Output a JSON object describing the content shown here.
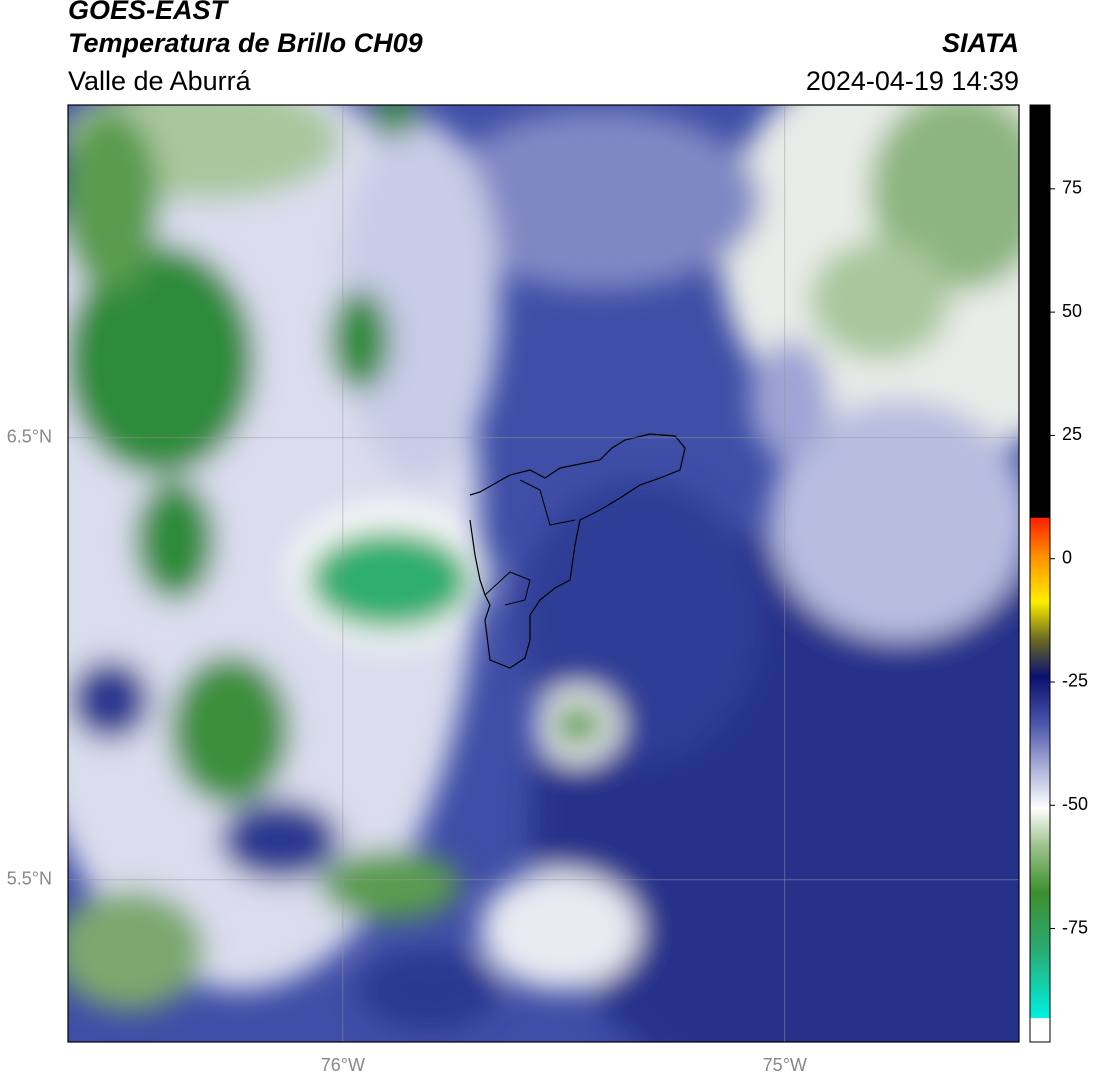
{
  "header": {
    "title": "GOES-EAST",
    "subtitle": "Temperatura de Brillo CH09",
    "region": "Valle de Aburrá",
    "source": "SIATA",
    "datetime": "2024-04-19 14:39"
  },
  "map": {
    "xlim": [
      -76.622,
      -74.47
    ],
    "ylim": [
      5.133,
      7.253
    ],
    "lat_ticks": [
      {
        "value": 6.5,
        "label": "6.5°N"
      },
      {
        "value": 5.5,
        "label": "5.5°N"
      }
    ],
    "lon_ticks": [
      {
        "value": -76,
        "label": "76°W"
      },
      {
        "value": -75,
        "label": "75°W"
      }
    ]
  },
  "colorbar": {
    "lim": [
      -98,
      92
    ],
    "ticks": [
      75,
      50,
      25,
      0,
      -25,
      -50,
      -75
    ]
  }
}
